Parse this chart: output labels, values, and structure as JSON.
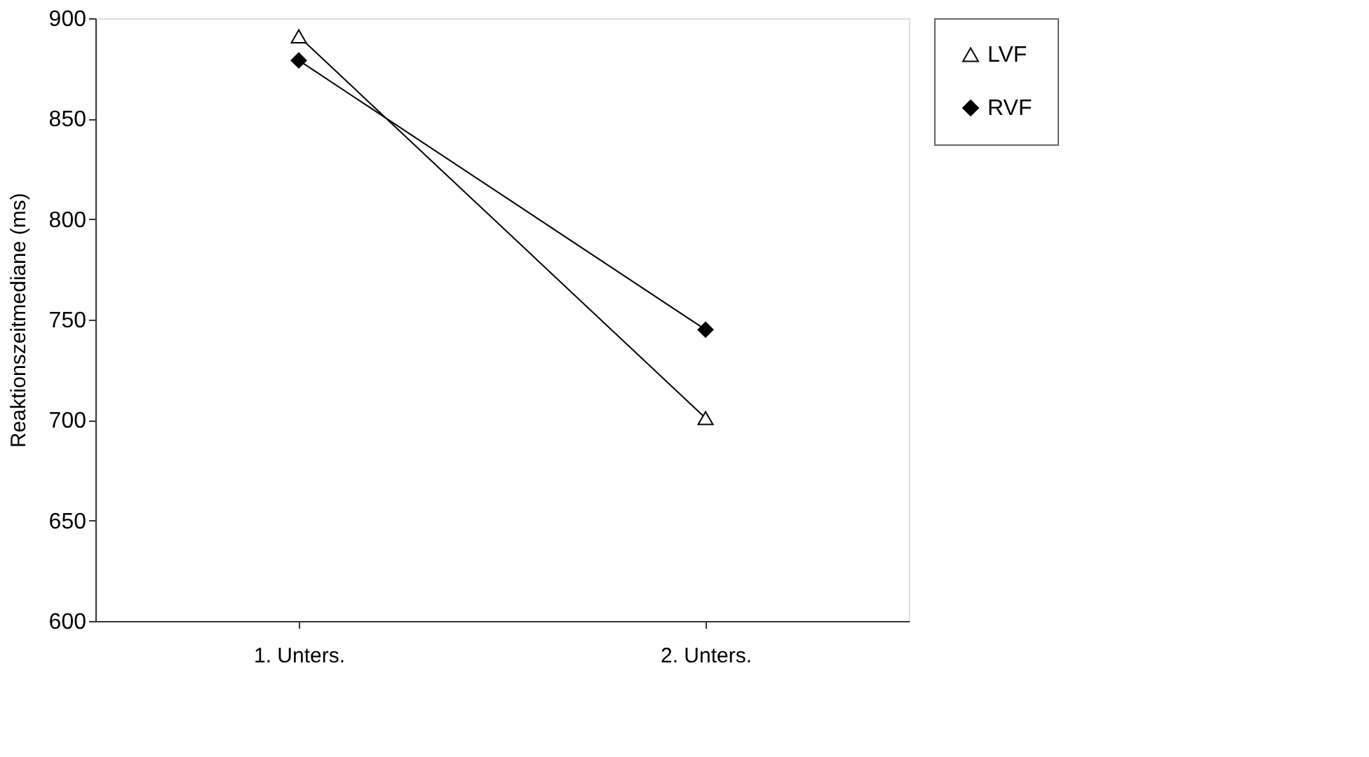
{
  "chart_data": {
    "type": "line",
    "categories": [
      "1. Unters.",
      "2. Unters."
    ],
    "ylabel": "Reaktionszeitmediane (ms)",
    "ylim": [
      600,
      900
    ],
    "yticks": [
      600,
      650,
      700,
      750,
      800,
      850,
      900
    ],
    "grid": false,
    "legend": "right",
    "series": [
      {
        "name": "LVF",
        "color": "#000000",
        "marker": "triangle",
        "values": [
          891,
          701
        ]
      },
      {
        "name": "RVF",
        "color": "#000000",
        "marker": "diamond",
        "values": [
          879,
          745
        ]
      }
    ]
  }
}
